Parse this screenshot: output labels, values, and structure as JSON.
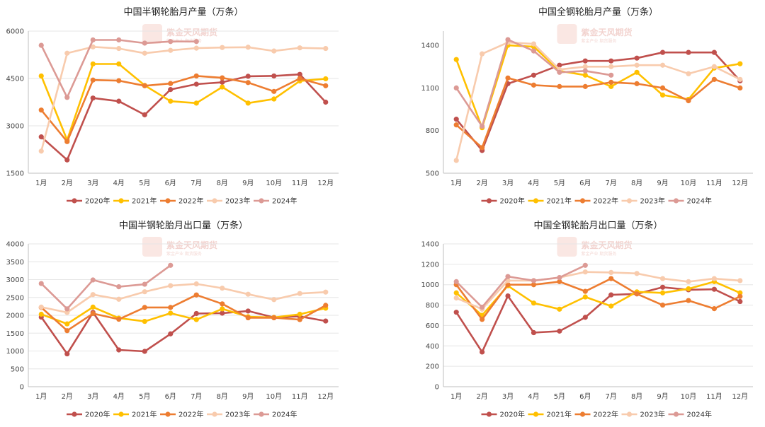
{
  "watermark": {
    "text": "紫金天风期货",
    "sub": "紫金产业 期货服务"
  },
  "chart_data": [
    {
      "type": "line",
      "title": "中国半钢轮胎月产量（万条）",
      "categories": [
        "1月",
        "2月",
        "3月",
        "4月",
        "5月",
        "6月",
        "7月",
        "8月",
        "9月",
        "10月",
        "11月",
        "12月"
      ],
      "ylim": [
        1500,
        6000
      ],
      "yticks": [
        1500,
        3000,
        4500,
        6000
      ],
      "grid": true,
      "legend_position": "bottom",
      "series": [
        {
          "name": "2020年",
          "color": "#c0504d",
          "values": [
            2650,
            1920,
            3880,
            3780,
            3350,
            4150,
            4320,
            4380,
            4570,
            4580,
            4630,
            3750
          ]
        },
        {
          "name": "2021年",
          "color": "#ffc000",
          "values": [
            4580,
            2550,
            4960,
            4960,
            4280,
            3780,
            3720,
            4230,
            3720,
            3850,
            4420,
            4490
          ]
        },
        {
          "name": "2022年",
          "color": "#ed7d31",
          "values": [
            3500,
            2500,
            4450,
            4430,
            4270,
            4340,
            4580,
            4520,
            4370,
            4090,
            4500,
            4270
          ]
        },
        {
          "name": "2023年",
          "color": "#f8cbad",
          "values": [
            2200,
            5300,
            5500,
            5450,
            5300,
            5390,
            5460,
            5480,
            5490,
            5370,
            5470,
            5450
          ]
        },
        {
          "name": "2024年",
          "color": "#dc9a95",
          "values": [
            5550,
            3900,
            5720,
            5720,
            5620,
            5670,
            5670,
            null,
            null,
            null,
            null,
            null
          ]
        }
      ]
    },
    {
      "type": "line",
      "title": "中国全钢轮胎月产量（万条）",
      "categories": [
        "1月",
        "2月",
        "3月",
        "4月",
        "5月",
        "6月",
        "7月",
        "8月",
        "9月",
        "10月",
        "11月",
        "12月"
      ],
      "ylim": [
        500,
        1500
      ],
      "yticks": [
        500,
        800,
        1100,
        1400
      ],
      "grid": false,
      "legend_position": "bottom",
      "series": [
        {
          "name": "2020年",
          "color": "#c0504d",
          "values": [
            880,
            660,
            1130,
            1190,
            1260,
            1290,
            1290,
            1310,
            1350,
            1350,
            1350,
            1150
          ]
        },
        {
          "name": "2021年",
          "color": "#ffc000",
          "values": [
            1300,
            820,
            1400,
            1390,
            1220,
            1190,
            1110,
            1210,
            1050,
            1020,
            1240,
            1270
          ]
        },
        {
          "name": "2022年",
          "color": "#ed7d31",
          "values": [
            840,
            680,
            1170,
            1120,
            1110,
            1110,
            1140,
            1130,
            1100,
            1010,
            1160,
            1100
          ]
        },
        {
          "name": "2023年",
          "color": "#f8cbad",
          "values": [
            590,
            1340,
            1420,
            1410,
            1230,
            1250,
            1250,
            1260,
            1260,
            1200,
            1250,
            1160
          ]
        },
        {
          "name": "2024年",
          "color": "#dc9a95",
          "values": [
            1100,
            830,
            1440,
            1360,
            1210,
            1220,
            1190,
            null,
            null,
            null,
            null,
            null
          ]
        }
      ]
    },
    {
      "type": "line",
      "title": "中国半钢轮胎月出口量（万条）",
      "categories": [
        "1月",
        "2月",
        "3月",
        "4月",
        "5月",
        "6月",
        "7月",
        "8月",
        "9月",
        "10月",
        "11月",
        "12月"
      ],
      "ylim": [
        0,
        4000
      ],
      "yticks": [
        0,
        500,
        1000,
        1500,
        2000,
        2500,
        3000,
        3500,
        4000
      ],
      "grid": true,
      "legend_position": "bottom",
      "series": [
        {
          "name": "2020年",
          "color": "#c0504d",
          "values": [
            1950,
            920,
            2080,
            1030,
            990,
            1480,
            2050,
            2060,
            2120,
            1940,
            1970,
            1840
          ]
        },
        {
          "name": "2021年",
          "color": "#ffc000",
          "values": [
            2030,
            1760,
            2230,
            1920,
            1830,
            2060,
            1880,
            2180,
            1960,
            1940,
            2030,
            2200
          ]
        },
        {
          "name": "2022年",
          "color": "#ed7d31",
          "values": [
            2220,
            1570,
            2050,
            1890,
            2220,
            2220,
            2570,
            2320,
            1930,
            1930,
            1880,
            2280
          ]
        },
        {
          "name": "2023年",
          "color": "#f8cbad",
          "values": [
            2230,
            2080,
            2580,
            2450,
            2660,
            2830,
            2880,
            2760,
            2590,
            2440,
            2610,
            2650
          ]
        },
        {
          "name": "2024年",
          "color": "#dc9a95",
          "values": [
            2890,
            2180,
            2990,
            2800,
            2870,
            3400,
            null,
            null,
            null,
            null,
            null,
            null
          ]
        }
      ]
    },
    {
      "type": "line",
      "title": "中国全钢轮胎月出口量（万条）",
      "categories": [
        "1月",
        "2月",
        "3月",
        "4月",
        "5月",
        "6月",
        "7月",
        "8月",
        "9月",
        "10月",
        "11月",
        "12月"
      ],
      "ylim": [
        0,
        1400
      ],
      "yticks": [
        0,
        200,
        400,
        600,
        800,
        1000,
        1200,
        1400
      ],
      "grid": true,
      "legend_position": "bottom",
      "series": [
        {
          "name": "2020年",
          "color": "#c0504d",
          "values": [
            730,
            340,
            890,
            530,
            545,
            680,
            900,
            910,
            975,
            950,
            955,
            835
          ]
        },
        {
          "name": "2021年",
          "color": "#ffc000",
          "values": [
            920,
            700,
            990,
            820,
            760,
            880,
            790,
            930,
            920,
            960,
            1030,
            920
          ]
        },
        {
          "name": "2022年",
          "color": "#ed7d31",
          "values": [
            1000,
            660,
            1000,
            1000,
            1030,
            935,
            1060,
            910,
            800,
            845,
            765,
            885
          ]
        },
        {
          "name": "2023年",
          "color": "#f8cbad",
          "values": [
            870,
            760,
            1040,
            1040,
            1070,
            1125,
            1120,
            1110,
            1060,
            1030,
            1060,
            1040
          ]
        },
        {
          "name": "2024年",
          "color": "#dc9a95",
          "values": [
            1030,
            780,
            1080,
            1040,
            1070,
            1190,
            null,
            null,
            null,
            null,
            null,
            null
          ]
        }
      ]
    }
  ]
}
